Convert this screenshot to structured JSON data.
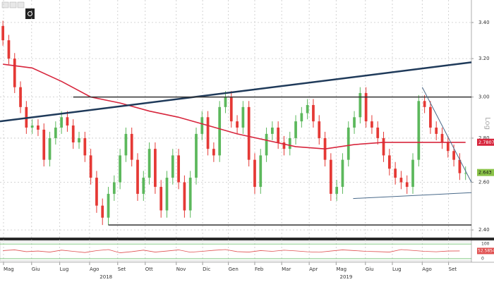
{
  "chart_data": [
    {
      "type": "candlestick",
      "log_scale": true,
      "axis_label": "Log",
      "up_color": "#5cb85c",
      "down_color": "#e53935",
      "open": [
        3.38,
        3.3,
        3.2,
        3.05,
        2.95,
        2.85,
        2.86,
        2.84,
        2.7,
        2.8,
        2.85,
        2.9,
        2.86,
        2.78,
        2.8,
        2.72,
        2.62,
        2.5,
        2.45,
        2.55,
        2.6,
        2.72,
        2.82,
        2.7,
        2.55,
        2.62,
        2.75,
        2.58,
        2.48,
        2.62,
        2.72,
        2.6,
        2.48,
        2.62,
        2.82,
        2.9,
        2.75,
        2.72,
        2.95,
        3.0,
        2.88,
        2.85,
        2.95,
        2.7,
        2.58,
        2.72,
        2.82,
        2.85,
        2.78,
        2.75,
        2.8,
        2.88,
        2.92,
        2.96,
        2.88,
        2.8,
        2.7,
        2.55,
        2.58,
        2.7,
        2.85,
        2.9,
        3.02,
        2.88,
        2.85,
        2.8,
        2.72,
        2.66,
        2.62,
        2.6,
        2.58,
        2.7,
        2.98,
        2.95,
        2.85,
        2.82,
        2.78,
        2.74,
        2.7,
        2.64
      ],
      "high": [
        3.41,
        3.33,
        3.23,
        3.08,
        2.98,
        2.89,
        2.89,
        2.87,
        2.83,
        2.88,
        2.93,
        2.93,
        2.89,
        2.83,
        2.83,
        2.75,
        2.65,
        2.53,
        2.58,
        2.63,
        2.75,
        2.85,
        2.85,
        2.73,
        2.65,
        2.78,
        2.78,
        2.61,
        2.65,
        2.75,
        2.75,
        2.63,
        2.65,
        2.85,
        2.93,
        2.93,
        2.78,
        2.98,
        3.03,
        3.03,
        2.91,
        2.98,
        2.98,
        2.73,
        2.75,
        2.85,
        2.88,
        2.88,
        2.81,
        2.83,
        2.91,
        2.95,
        2.99,
        2.99,
        2.91,
        2.83,
        2.73,
        2.61,
        2.73,
        2.88,
        2.93,
        3.05,
        3.05,
        2.91,
        2.88,
        2.83,
        2.75,
        2.69,
        2.65,
        2.63,
        2.73,
        3.01,
        3.01,
        2.98,
        2.88,
        2.85,
        2.81,
        2.77,
        2.73,
        2.67
      ],
      "low": [
        3.27,
        3.17,
        3.02,
        2.92,
        2.82,
        2.82,
        2.81,
        2.67,
        2.67,
        2.77,
        2.82,
        2.83,
        2.75,
        2.75,
        2.69,
        2.59,
        2.47,
        2.42,
        2.42,
        2.52,
        2.57,
        2.69,
        2.67,
        2.52,
        2.52,
        2.59,
        2.55,
        2.45,
        2.45,
        2.59,
        2.57,
        2.45,
        2.45,
        2.59,
        2.79,
        2.72,
        2.69,
        2.69,
        2.92,
        2.85,
        2.82,
        2.82,
        2.67,
        2.55,
        2.55,
        2.69,
        2.79,
        2.75,
        2.72,
        2.72,
        2.77,
        2.85,
        2.89,
        2.85,
        2.77,
        2.67,
        2.52,
        2.52,
        2.55,
        2.67,
        2.82,
        2.87,
        2.85,
        2.82,
        2.77,
        2.69,
        2.63,
        2.59,
        2.57,
        2.55,
        2.55,
        2.67,
        2.92,
        2.82,
        2.79,
        2.75,
        2.71,
        2.67,
        2.61,
        2.61
      ],
      "close": [
        3.3,
        3.2,
        3.05,
        2.95,
        2.85,
        2.86,
        2.84,
        2.7,
        2.8,
        2.85,
        2.9,
        2.86,
        2.78,
        2.8,
        2.72,
        2.62,
        2.5,
        2.45,
        2.55,
        2.6,
        2.72,
        2.82,
        2.7,
        2.55,
        2.62,
        2.75,
        2.58,
        2.48,
        2.62,
        2.72,
        2.6,
        2.48,
        2.62,
        2.82,
        2.9,
        2.75,
        2.72,
        2.95,
        3.0,
        2.88,
        2.85,
        2.95,
        2.7,
        2.58,
        2.72,
        2.82,
        2.85,
        2.78,
        2.75,
        2.8,
        2.88,
        2.92,
        2.96,
        2.88,
        2.8,
        2.7,
        2.55,
        2.58,
        2.7,
        2.85,
        2.9,
        3.02,
        2.88,
        2.85,
        2.8,
        2.72,
        2.66,
        2.62,
        2.6,
        2.58,
        2.7,
        2.98,
        2.95,
        2.85,
        2.82,
        2.78,
        2.74,
        2.7,
        2.64,
        2.64
      ],
      "moving_average": {
        "color": "#d7263d",
        "x": [
          0,
          5,
          10,
          15,
          20,
          25,
          30,
          35,
          40,
          45,
          50,
          55,
          60,
          65,
          70,
          75,
          79
        ],
        "values": [
          3.17,
          3.15,
          3.08,
          3.0,
          2.97,
          2.93,
          2.9,
          2.86,
          2.82,
          2.79,
          2.76,
          2.75,
          2.77,
          2.78,
          2.78,
          2.78,
          2.78
        ]
      },
      "trendlines": [
        {
          "color": "#1f3a5a",
          "width": 2.5,
          "x": [
            -0.5,
            80
          ],
          "values": [
            2.88,
            3.18
          ]
        },
        {
          "color": "#333333",
          "width": 1.5,
          "x": [
            12.0,
            80
          ],
          "values": [
            3.0,
            3.0
          ]
        },
        {
          "color": "#333333",
          "width": 1.5,
          "x": [
            18.0,
            80
          ],
          "values": [
            2.42,
            2.42
          ]
        },
        {
          "color": "#4a6a8a",
          "width": 1,
          "x": [
            71.6,
            80
          ],
          "values": [
            3.05,
            2.6
          ]
        },
        {
          "color": "#4a6a8a",
          "width": 1,
          "x": [
            59.8,
            80
          ],
          "values": [
            2.53,
            2.555
          ]
        }
      ],
      "last_ma": 2.7807,
      "last_price": 2.643,
      "xlim": [
        -0.5,
        80
      ],
      "ylim": [
        2.375,
        3.51
      ],
      "yticks": [
        {
          "value": 2.4,
          "label": "2.40"
        },
        {
          "value": 2.6,
          "label": "2.60"
        },
        {
          "value": 2.8,
          "label": "2.80"
        },
        {
          "value": 3.0,
          "label": "3.00"
        },
        {
          "value": 3.2,
          "label": "3.20"
        },
        {
          "value": 3.4,
          "label": "3.40"
        }
      ],
      "xticks": [
        {
          "value": 0.1,
          "label": "Mag"
        },
        {
          "value": 4.9,
          "label": "Giu"
        },
        {
          "value": 9.7,
          "label": "Lug"
        },
        {
          "value": 14.8,
          "label": "Ago"
        },
        {
          "value": 19.6,
          "label": "Set"
        },
        {
          "value": 24.3,
          "label": "Ott"
        },
        {
          "value": 29.6,
          "label": "Nov"
        },
        {
          "value": 34.1,
          "label": "Dic"
        },
        {
          "value": 38.5,
          "label": "Gen"
        },
        {
          "value": 43.0,
          "label": "Feb"
        },
        {
          "value": 47.6,
          "label": "Mar"
        },
        {
          "value": 52.3,
          "label": "Apr"
        },
        {
          "value": 56.9,
          "label": "Mag"
        },
        {
          "value": 61.9,
          "label": "Giu"
        },
        {
          "value": 66.5,
          "label": "Lug"
        },
        {
          "value": 71.6,
          "label": "Ago"
        },
        {
          "value": 76.1,
          "label": "Set"
        }
      ],
      "year_ticks": [
        {
          "value": 17.6,
          "label": "2018"
        },
        {
          "value": 58.6,
          "label": "2019"
        }
      ],
      "grid": true
    },
    {
      "type": "line",
      "color": "#e05050",
      "level_color": "#5cb85c",
      "x": [
        0,
        2,
        4,
        6,
        8,
        10,
        12,
        14,
        16,
        18,
        20,
        22,
        24,
        26,
        28,
        30,
        32,
        34,
        36,
        38,
        40,
        42,
        44,
        46,
        48,
        50,
        52,
        54,
        56,
        58,
        60,
        62,
        64,
        66,
        68,
        70,
        72,
        74,
        76,
        78
      ],
      "values": [
        55,
        60,
        48,
        52,
        45,
        58,
        50,
        42,
        55,
        62,
        40,
        48,
        58,
        45,
        52,
        60,
        44,
        50,
        57,
        62,
        48,
        45,
        55,
        50,
        58,
        53,
        47,
        44,
        52,
        60,
        55,
        50,
        48,
        45,
        62,
        56,
        50,
        47,
        52,
        52.5854
      ],
      "last": 52.5854,
      "xlim": [
        -0.5,
        80
      ],
      "ylim": [
        -15,
        115
      ],
      "yticks": [
        0,
        100
      ]
    }
  ]
}
